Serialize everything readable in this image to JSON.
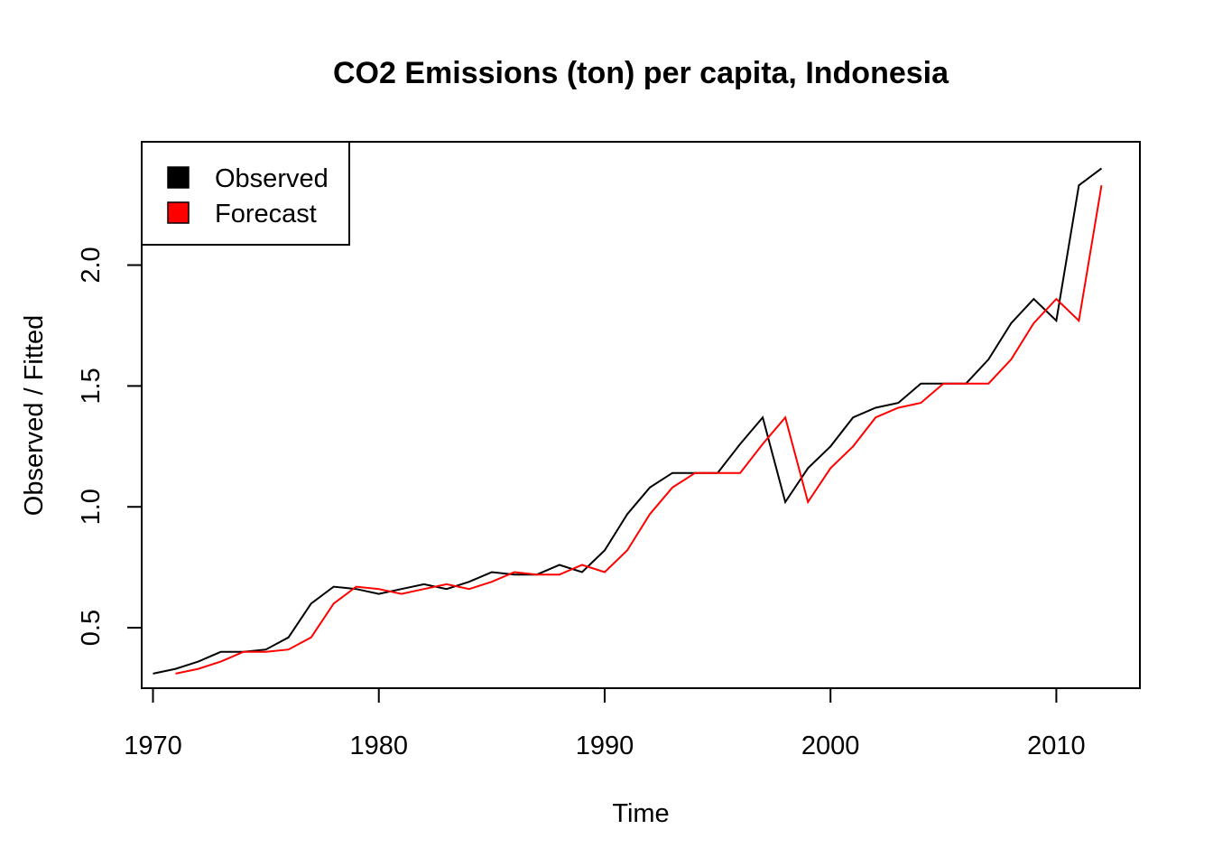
{
  "chart_data": {
    "type": "line",
    "title": "CO2 Emissions (ton) per capita, Indonesia",
    "xlabel": "Time",
    "ylabel": "Observed / Fitted",
    "xlim": [
      1969.5,
      2013.7
    ],
    "ylim": [
      0.25,
      2.51
    ],
    "x_ticks": [
      1970,
      1980,
      1990,
      2000,
      2010
    ],
    "y_ticks": [
      0.5,
      1.0,
      1.5,
      2.0
    ],
    "x_tick_labels": [
      "1970",
      "1980",
      "1990",
      "2000",
      "2010"
    ],
    "y_tick_labels": [
      "0.5",
      "1.0",
      "1.5",
      "2.0"
    ],
    "grid": false,
    "legend_position": "top-left",
    "series": [
      {
        "name": "Observed",
        "color": "#000000",
        "x": [
          1970,
          1971,
          1972,
          1973,
          1974,
          1975,
          1976,
          1977,
          1978,
          1979,
          1980,
          1981,
          1982,
          1983,
          1984,
          1985,
          1986,
          1987,
          1988,
          1989,
          1990,
          1991,
          1992,
          1993,
          1994,
          1995,
          1996,
          1997,
          1998,
          1999,
          2000,
          2001,
          2002,
          2003,
          2004,
          2005,
          2006,
          2007,
          2008,
          2009,
          2010,
          2011,
          2012
        ],
        "values": [
          0.31,
          0.33,
          0.36,
          0.4,
          0.4,
          0.41,
          0.46,
          0.6,
          0.67,
          0.66,
          0.64,
          0.66,
          0.68,
          0.66,
          0.69,
          0.73,
          0.72,
          0.72,
          0.76,
          0.73,
          0.82,
          0.97,
          1.08,
          1.14,
          1.14,
          1.14,
          1.26,
          1.37,
          1.02,
          1.16,
          1.25,
          1.37,
          1.41,
          1.43,
          1.51,
          1.51,
          1.51,
          1.61,
          1.76,
          1.86,
          1.77,
          2.33,
          2.4
        ]
      },
      {
        "name": "Forecast",
        "color": "#ff0000",
        "x": [
          1971,
          1972,
          1973,
          1974,
          1975,
          1976,
          1977,
          1978,
          1979,
          1980,
          1981,
          1982,
          1983,
          1984,
          1985,
          1986,
          1987,
          1988,
          1989,
          1990,
          1991,
          1992,
          1993,
          1994,
          1995,
          1996,
          1997,
          1998,
          1999,
          2000,
          2001,
          2002,
          2003,
          2004,
          2005,
          2006,
          2007,
          2008,
          2009,
          2010,
          2011,
          2012
        ],
        "values": [
          0.31,
          0.33,
          0.36,
          0.4,
          0.4,
          0.41,
          0.46,
          0.6,
          0.67,
          0.66,
          0.64,
          0.66,
          0.68,
          0.66,
          0.69,
          0.73,
          0.72,
          0.72,
          0.76,
          0.73,
          0.82,
          0.97,
          1.08,
          1.14,
          1.14,
          1.14,
          1.26,
          1.37,
          1.02,
          1.16,
          1.25,
          1.37,
          1.41,
          1.43,
          1.51,
          1.51,
          1.51,
          1.61,
          1.76,
          1.86,
          1.77,
          2.33
        ]
      }
    ]
  }
}
